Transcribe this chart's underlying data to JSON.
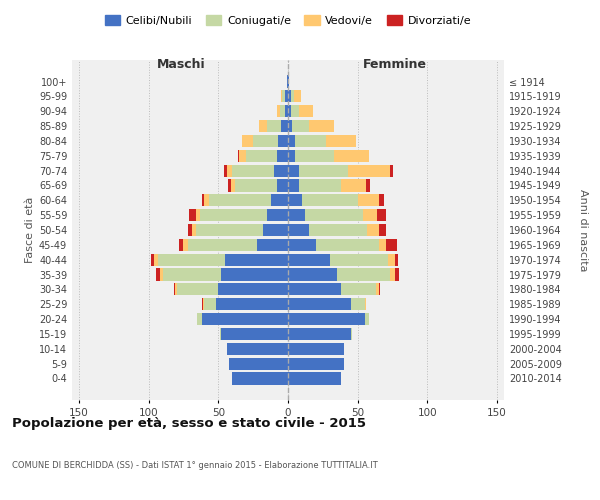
{
  "age_groups": [
    "0-4",
    "5-9",
    "10-14",
    "15-19",
    "20-24",
    "25-29",
    "30-34",
    "35-39",
    "40-44",
    "45-49",
    "50-54",
    "55-59",
    "60-64",
    "65-69",
    "70-74",
    "75-79",
    "80-84",
    "85-89",
    "90-94",
    "95-99",
    "100+"
  ],
  "birth_years": [
    "2010-2014",
    "2005-2009",
    "2000-2004",
    "1995-1999",
    "1990-1994",
    "1985-1989",
    "1980-1984",
    "1975-1979",
    "1970-1974",
    "1965-1969",
    "1960-1964",
    "1955-1959",
    "1950-1954",
    "1945-1949",
    "1940-1944",
    "1935-1939",
    "1930-1934",
    "1925-1929",
    "1920-1924",
    "1915-1919",
    "≤ 1914"
  ],
  "maschi_celibi": [
    40,
    42,
    44,
    48,
    62,
    52,
    50,
    48,
    45,
    22,
    18,
    15,
    12,
    8,
    10,
    8,
    7,
    5,
    2,
    2,
    1
  ],
  "maschi_coniugati": [
    0,
    0,
    0,
    1,
    3,
    8,
    30,
    42,
    48,
    50,
    48,
    48,
    45,
    30,
    30,
    22,
    18,
    10,
    4,
    2,
    0
  ],
  "maschi_vedovi": [
    0,
    0,
    0,
    0,
    0,
    1,
    1,
    2,
    3,
    3,
    3,
    3,
    3,
    3,
    4,
    5,
    8,
    6,
    2,
    1,
    0
  ],
  "maschi_divorziati": [
    0,
    0,
    0,
    0,
    0,
    1,
    1,
    3,
    2,
    3,
    3,
    5,
    2,
    2,
    2,
    1,
    0,
    0,
    0,
    0,
    0
  ],
  "femmine_celibi": [
    38,
    40,
    40,
    45,
    55,
    45,
    38,
    35,
    30,
    20,
    15,
    12,
    10,
    8,
    8,
    5,
    5,
    3,
    2,
    2,
    1
  ],
  "femmine_coniugati": [
    0,
    0,
    0,
    1,
    3,
    10,
    25,
    38,
    42,
    45,
    42,
    42,
    40,
    30,
    35,
    28,
    22,
    12,
    6,
    2,
    0
  ],
  "femmine_vedovi": [
    0,
    0,
    0,
    0,
    0,
    1,
    2,
    4,
    5,
    5,
    8,
    10,
    15,
    18,
    30,
    25,
    22,
    18,
    10,
    5,
    0
  ],
  "femmine_divorziati": [
    0,
    0,
    0,
    0,
    0,
    0,
    1,
    3,
    2,
    8,
    5,
    6,
    4,
    3,
    2,
    0,
    0,
    0,
    0,
    0,
    0
  ],
  "color_celibi": "#4472c4",
  "color_coniugati": "#c5d8a4",
  "color_vedovi": "#ffc870",
  "color_divorziati": "#cc2222",
  "title": "Popolazione per età, sesso e stato civile - 2015",
  "subtitle": "COMUNE DI BERCHIDDA (SS) - Dati ISTAT 1° gennaio 2015 - Elaborazione TUTTITALIA.IT",
  "xlabel_left": "Maschi",
  "xlabel_right": "Femmine",
  "ylabel_left": "Fasce di età",
  "ylabel_right": "Anni di nascita",
  "xlim": 155,
  "bg_color": "#ffffff",
  "plot_bg": "#f0f0f0",
  "grid_color": "#cccccc"
}
